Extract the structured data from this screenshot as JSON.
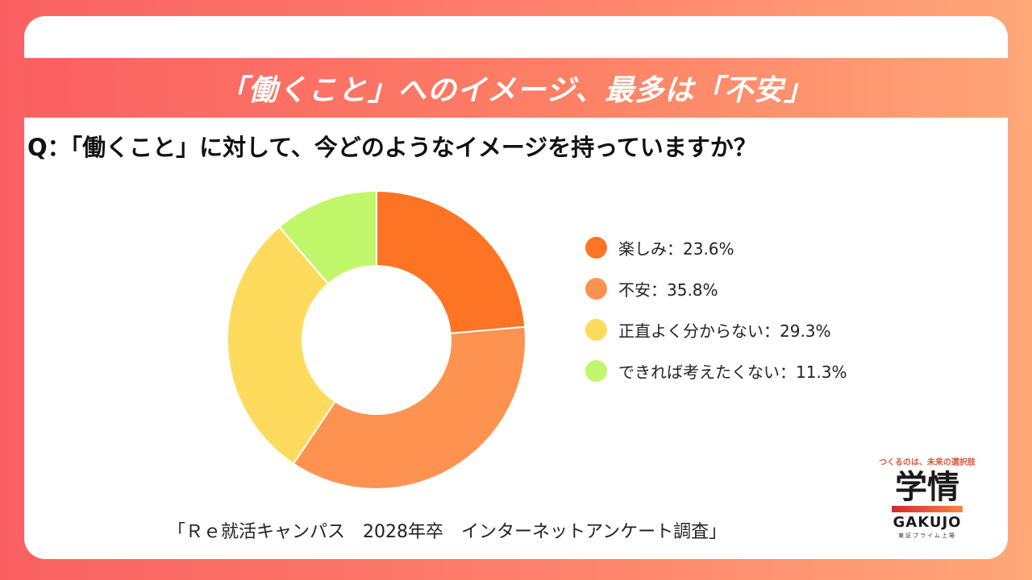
{
  "banner": {
    "title": "「働くこと」へのイメージ、最多は「不安」"
  },
  "question": "Q：「働くこと」に対して、今どのようなイメージを持っていますか？",
  "chart_data": {
    "type": "pie",
    "donut": true,
    "legend_position": "right",
    "slices": [
      {
        "label": "楽しみ",
        "value": 23.6,
        "color": "#fd7425",
        "legend": "楽しみ：23.6%"
      },
      {
        "label": "不安",
        "value": 35.8,
        "color": "#fe9351",
        "legend": "不安：35.8%"
      },
      {
        "label": "正直よく分からない",
        "value": 29.3,
        "color": "#fedb5c",
        "legend": "正直よく分からない：29.3%"
      },
      {
        "label": "できれば考えたくない",
        "value": 11.3,
        "color": "#c1f76a",
        "legend": "できれば考えたくない：11.3%"
      }
    ]
  },
  "source": "「Ｒｅ就活キャンパス　2028年卒　インターネットアンケート調査」",
  "logo": {
    "tagline": "つくるのは、未来の選択肢",
    "mark": "学情",
    "name": "GAKUJO",
    "sub": "東証プライム上場"
  }
}
